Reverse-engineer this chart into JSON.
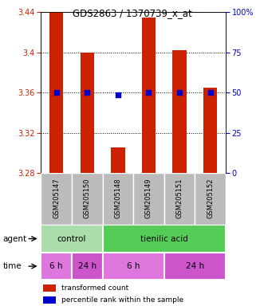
{
  "title": "GDS2863 / 1370739_x_at",
  "samples": [
    "GSM205147",
    "GSM205150",
    "GSM205148",
    "GSM205149",
    "GSM205151",
    "GSM205152"
  ],
  "bar_values": [
    3.44,
    3.4,
    3.305,
    3.435,
    3.402,
    3.365
  ],
  "percentile_values": [
    3.36,
    3.36,
    3.358,
    3.36,
    3.36,
    3.36
  ],
  "ymin": 3.28,
  "ymax": 3.44,
  "yticks_left": [
    3.28,
    3.32,
    3.36,
    3.4,
    3.44
  ],
  "yticks_right": [
    0,
    25,
    50,
    75,
    100
  ],
  "yticks_right_labels": [
    "0",
    "25",
    "50",
    "75",
    "100%"
  ],
  "bar_color": "#cc2200",
  "dot_color": "#0000cc",
  "agent_groups": [
    {
      "label": "control",
      "cols": [
        0,
        1
      ],
      "color": "#aaddaa"
    },
    {
      "label": "tienilic acid",
      "cols": [
        2,
        3,
        4,
        5
      ],
      "color": "#55cc55"
    }
  ],
  "time_groups": [
    {
      "label": "6 h",
      "cols": [
        0
      ],
      "color": "#dd77dd"
    },
    {
      "label": "24 h",
      "cols": [
        1
      ],
      "color": "#cc55cc"
    },
    {
      "label": "6 h",
      "cols": [
        2,
        3
      ],
      "color": "#dd77dd"
    },
    {
      "label": "24 h",
      "cols": [
        4,
        5
      ],
      "color": "#cc55cc"
    }
  ],
  "sample_bg_color": "#bbbbbb",
  "legend_bar_label": "transformed count",
  "legend_dot_label": "percentile rank within the sample",
  "label_agent": "agent",
  "label_time": "time"
}
